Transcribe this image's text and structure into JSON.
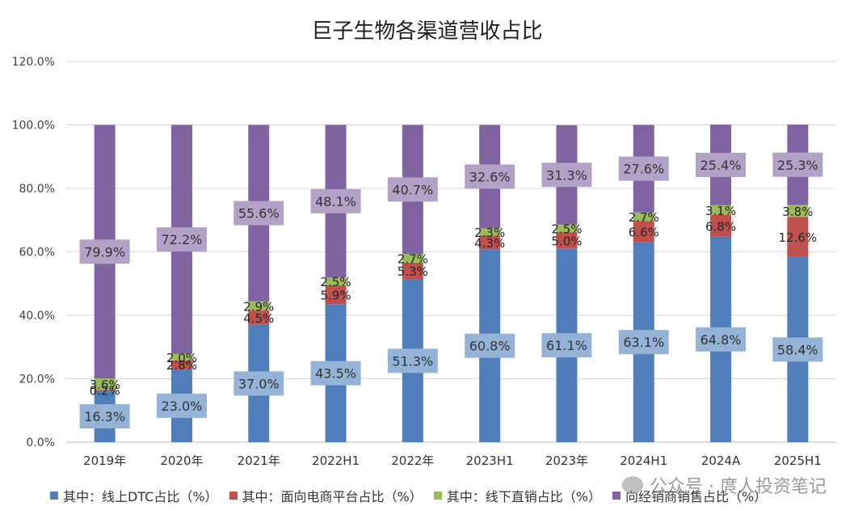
{
  "chart_data": {
    "type": "bar",
    "stacked": true,
    "title": "巨子生物各渠道营收占比",
    "ylim": [
      0,
      120
    ],
    "yticks": [
      "0.0%",
      "20.0%",
      "40.0%",
      "60.0%",
      "80.0%",
      "100.0%",
      "120.0%"
    ],
    "categories": [
      "2019年",
      "2020年",
      "2021年",
      "2022H1",
      "2022年",
      "2023H1",
      "2023年",
      "2024H1",
      "2024A",
      "2025H1"
    ],
    "series": [
      {
        "name": "其中：线上DTC占比（%）",
        "color": "#4F7EBB",
        "values": [
          16.3,
          23.0,
          37.0,
          43.5,
          51.3,
          60.8,
          61.1,
          63.1,
          64.8,
          58.4
        ],
        "labels": [
          "16.3%",
          "23.0%",
          "37.0%",
          "43.5%",
          "51.3%",
          "60.8%",
          "61.1%",
          "63.1%",
          "64.8%",
          "58.4%"
        ]
      },
      {
        "name": "其中：面向电商平台占比（%）",
        "color": "#C0504D",
        "values": [
          0.2,
          2.8,
          4.5,
          5.9,
          5.3,
          4.3,
          5.0,
          6.6,
          6.8,
          12.6
        ],
        "labels": [
          "0.2%",
          "2.8%",
          "4.5%",
          "5.9%",
          "5.3%",
          "4.3%",
          "5.0%",
          "6.6%",
          "6.8%",
          "12.6%"
        ]
      },
      {
        "name": "其中：线下直销占比（%）",
        "color": "#9BBB59",
        "values": [
          3.6,
          2.0,
          2.9,
          2.5,
          2.7,
          2.3,
          2.5,
          2.7,
          3.1,
          3.8
        ],
        "labels": [
          "3.6%",
          "2.0%",
          "2.9%",
          "2.5%",
          "2.7%",
          "2.3%",
          "2.5%",
          "2.7%",
          "3.1%",
          "3.8%"
        ]
      },
      {
        "name": "向经销商销售占比（%）",
        "color": "#8064A2",
        "values": [
          79.9,
          72.2,
          55.6,
          48.1,
          40.7,
          32.6,
          31.3,
          27.6,
          25.4,
          25.3
        ],
        "labels": [
          "79.9%",
          "72.2%",
          "55.6%",
          "48.1%",
          "40.7%",
          "32.6%",
          "31.3%",
          "27.6%",
          "25.4%",
          "25.3%"
        ]
      }
    ],
    "legend_position": "bottom",
    "grid": true
  },
  "watermark": {
    "text": "公众号 · 庹人投资笔记",
    "icon": "wechat-icon"
  }
}
